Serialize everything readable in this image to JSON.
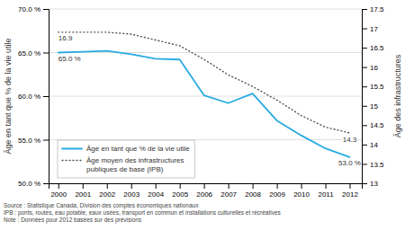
{
  "chart_data": {
    "type": "line",
    "x": [
      2000,
      2001,
      2002,
      2003,
      2004,
      2005,
      2006,
      2007,
      2008,
      2009,
      2010,
      2011,
      2012
    ],
    "xlim": [
      1999.6,
      2012.5
    ],
    "xticks": [
      2000,
      2001,
      2002,
      2003,
      2004,
      2005,
      2006,
      2007,
      2008,
      2009,
      2010,
      2011,
      2012
    ],
    "ylabel": "Âge en tant que % de la vie utile",
    "y2label": "Âge des infrastructures",
    "ylim": [
      50.0,
      70.0
    ],
    "yticks": [
      {
        "value": 50.0,
        "label": "50.0 %"
      },
      {
        "value": 55.0,
        "label": "55.0 %"
      },
      {
        "value": 60.0,
        "label": "60.0 %"
      },
      {
        "value": 65.0,
        "label": "65.0 %"
      },
      {
        "value": 70.0,
        "label": "70.0 %"
      }
    ],
    "y2lim": [
      13.0,
      17.5
    ],
    "y2ticks": [
      13,
      13.5,
      14,
      14.5,
      15,
      15.5,
      16,
      16.5,
      17,
      17.5
    ],
    "series": [
      {
        "name": "Âge en tant que % de la vie utile",
        "color": "#29ABE2",
        "line_style": "solid",
        "values": [
          65.0,
          65.1,
          65.2,
          64.8,
          64.3,
          64.2,
          60.1,
          59.2,
          60.3,
          57.2,
          55.5,
          54.0,
          53.0
        ]
      },
      {
        "name": "Âge moyen des infrastructures\npubliques de base (IPB)",
        "color": "#555555",
        "line_style": "dotted",
        "axis": "y2",
        "values": [
          16.9,
          16.9,
          16.9,
          16.85,
          16.7,
          16.55,
          16.2,
          15.8,
          15.5,
          15.15,
          14.75,
          14.45,
          14.3
        ]
      }
    ],
    "annotations": [
      {
        "text": "65.0 %",
        "x": 2000,
        "y": 65.0
      },
      {
        "text": "16.9",
        "x": 2000,
        "y": 16.9,
        "axis": "y2"
      },
      {
        "text": "53.0 %",
        "x": 2012,
        "y": 53.0
      },
      {
        "text": "14.3",
        "x": 2012,
        "y": 14.3,
        "axis": "y2"
      }
    ],
    "source": [
      "Source : Statistique Canada, Division des comptes économiques nationaux",
      "IPB : ponts, routes, eau potable, eaux usées, transport en commun et installations culturelles et récréatives",
      "Note : Données pour 2012 basées sur des prévisions"
    ],
    "grid": true,
    "legend": "lower left"
  }
}
